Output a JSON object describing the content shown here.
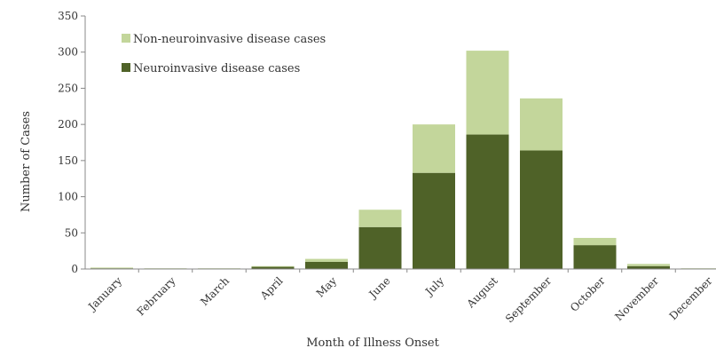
{
  "chart_data": {
    "type": "bar",
    "stacked": true,
    "title": "",
    "xlabel": "Month of Illness Onset",
    "ylabel": "Number of Cases",
    "ylim": [
      0,
      350
    ],
    "yticks": [
      0,
      50,
      100,
      150,
      200,
      250,
      300,
      350
    ],
    "grid": false,
    "legend_position": "top-left",
    "categories": [
      "January",
      "February",
      "March",
      "April",
      "May",
      "June",
      "July",
      "August",
      "September",
      "October",
      "November",
      "December"
    ],
    "series": [
      {
        "name": "Neuroinvasive disease cases",
        "color": "#4f6228",
        "values": [
          1,
          0,
          0,
          3,
          10,
          58,
          133,
          186,
          164,
          33,
          4,
          0
        ]
      },
      {
        "name": "Non-neuroinvasive disease cases",
        "color": "#c3d69b",
        "values": [
          1,
          1,
          1,
          1,
          4,
          24,
          67,
          116,
          72,
          10,
          3,
          1
        ]
      }
    ]
  }
}
